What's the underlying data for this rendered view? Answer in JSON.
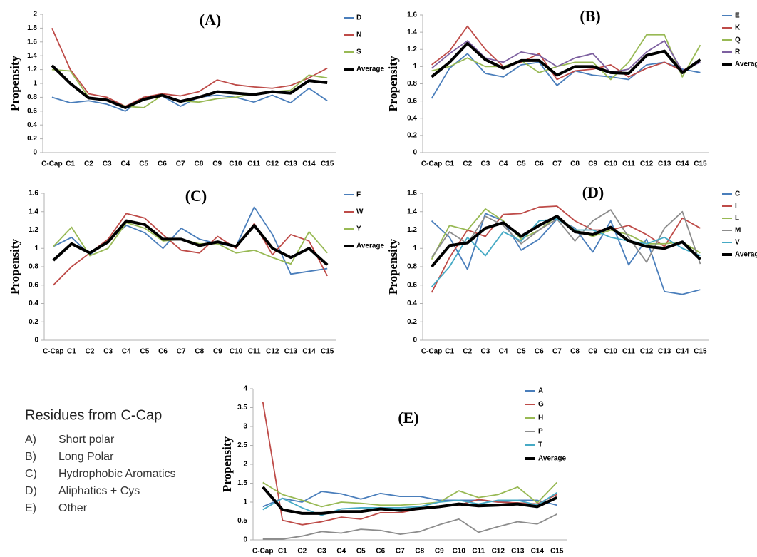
{
  "chart_data": [
    {
      "type": "line",
      "title": "(A)",
      "ylabel": "Propensity",
      "categories": [
        "C-Cap",
        "C1",
        "C2",
        "C3",
        "C4",
        "C5",
        "C6",
        "C7",
        "C8",
        "C9",
        "C10",
        "C11",
        "C12",
        "C13",
        "C14",
        "C15"
      ],
      "ylim": [
        0,
        2
      ],
      "yticks": [
        0,
        0.2,
        0.4,
        0.6,
        0.8,
        1,
        1.2,
        1.4,
        1.6,
        1.8,
        2
      ],
      "series": [
        {
          "name": "D",
          "color": "#4a7ebb",
          "values": [
            0.8,
            0.72,
            0.75,
            0.7,
            0.6,
            0.8,
            0.82,
            0.67,
            0.8,
            0.83,
            0.8,
            0.73,
            0.83,
            0.72,
            0.93,
            0.75
          ]
        },
        {
          "name": "N",
          "color": "#be4b48",
          "values": [
            1.8,
            1.2,
            0.85,
            0.8,
            0.67,
            0.8,
            0.85,
            0.82,
            0.88,
            1.05,
            0.98,
            0.95,
            0.93,
            0.97,
            1.08,
            1.22
          ]
        },
        {
          "name": "S",
          "color": "#98b954",
          "values": [
            1.2,
            1.18,
            0.8,
            0.75,
            0.67,
            0.65,
            0.83,
            0.75,
            0.73,
            0.78,
            0.8,
            0.85,
            0.88,
            0.9,
            1.12,
            1.08
          ]
        },
        {
          "name": "Average",
          "color": "#000000",
          "values": [
            1.26,
            1.0,
            0.79,
            0.76,
            0.65,
            0.77,
            0.83,
            0.74,
            0.8,
            0.88,
            0.86,
            0.84,
            0.88,
            0.86,
            1.04,
            1.01
          ]
        }
      ]
    },
    {
      "type": "line",
      "title": "(B)",
      "ylabel": "Propensity",
      "categories": [
        "C-Cap",
        "C1",
        "C2",
        "C3",
        "C4",
        "C5",
        "C6",
        "C7",
        "C8",
        "C9",
        "C10",
        "C11",
        "C12",
        "C13",
        "C14",
        "C15"
      ],
      "ylim": [
        0,
        1.6
      ],
      "yticks": [
        0,
        0.2,
        0.4,
        0.6,
        0.8,
        1,
        1.2,
        1.4,
        1.6
      ],
      "series": [
        {
          "name": "E",
          "color": "#4a7ebb",
          "values": [
            0.63,
            0.98,
            1.15,
            0.92,
            0.88,
            1.02,
            1.05,
            0.78,
            0.95,
            0.9,
            0.88,
            0.85,
            1.02,
            1.05,
            0.97,
            0.93
          ]
        },
        {
          "name": "K",
          "color": "#be4b48",
          "values": [
            1.02,
            1.18,
            1.47,
            1.2,
            1.0,
            1.05,
            1.15,
            0.85,
            0.95,
            0.97,
            1.02,
            0.88,
            0.98,
            1.05,
            0.95,
            1.07
          ]
        },
        {
          "name": "Q",
          "color": "#98b954",
          "values": [
            0.95,
            1.0,
            1.1,
            1.0,
            1.0,
            1.07,
            0.93,
            1.0,
            1.05,
            1.05,
            0.85,
            1.05,
            1.37,
            1.37,
            0.88,
            1.25
          ]
        },
        {
          "name": "R",
          "color": "#7d60a0",
          "values": [
            0.98,
            1.15,
            1.3,
            1.1,
            1.05,
            1.17,
            1.13,
            1.0,
            1.1,
            1.15,
            0.93,
            0.97,
            1.17,
            1.3,
            0.95,
            1.05
          ]
        },
        {
          "name": "Average",
          "color": "#000000",
          "values": [
            0.88,
            1.05,
            1.27,
            1.08,
            0.98,
            1.07,
            1.07,
            0.9,
            1.0,
            1.0,
            0.93,
            0.92,
            1.13,
            1.18,
            0.93,
            1.08
          ]
        }
      ]
    },
    {
      "type": "line",
      "title": "(C)",
      "ylabel": "Propensity",
      "categories": [
        "C-Cap",
        "C1",
        "C2",
        "C3",
        "C4",
        "C5",
        "C6",
        "C7",
        "C8",
        "C9",
        "C10",
        "C11",
        "C12",
        "C13",
        "C14",
        "C15"
      ],
      "ylim": [
        0,
        1.6
      ],
      "yticks": [
        0,
        0.2,
        0.4,
        0.6,
        0.8,
        1,
        1.2,
        1.4,
        1.6
      ],
      "series": [
        {
          "name": "F",
          "color": "#4a7ebb",
          "values": [
            1.02,
            1.12,
            0.93,
            1.08,
            1.25,
            1.17,
            1.0,
            1.22,
            1.1,
            1.05,
            1.02,
            1.45,
            1.15,
            0.72,
            0.75,
            0.78
          ]
        },
        {
          "name": "W",
          "color": "#be4b48",
          "values": [
            0.6,
            0.8,
            0.95,
            1.1,
            1.38,
            1.33,
            1.15,
            0.98,
            0.95,
            1.13,
            1.0,
            1.27,
            0.93,
            1.15,
            1.08,
            0.7
          ]
        },
        {
          "name": "Y",
          "color": "#98b954",
          "values": [
            1.02,
            1.23,
            0.92,
            1.0,
            1.28,
            1.22,
            1.08,
            1.1,
            1.05,
            1.05,
            0.95,
            0.98,
            0.9,
            0.83,
            1.18,
            0.95
          ]
        },
        {
          "name": "Average",
          "color": "#000000",
          "values": [
            0.87,
            1.05,
            0.95,
            1.07,
            1.3,
            1.26,
            1.1,
            1.1,
            1.03,
            1.07,
            1.02,
            1.25,
            1.0,
            0.9,
            1.0,
            0.82
          ]
        }
      ]
    },
    {
      "type": "line",
      "title": "(D)",
      "ylabel": "Propensity",
      "categories": [
        "C-Cap",
        "C1",
        "C2",
        "C3",
        "C4",
        "C5",
        "C6",
        "C7",
        "C8",
        "C9",
        "C10",
        "C11",
        "C12",
        "C13",
        "C14",
        "C15"
      ],
      "ylim": [
        0,
        1.6
      ],
      "yticks": [
        0,
        0.2,
        0.4,
        0.6,
        0.8,
        1,
        1.2,
        1.4,
        1.6
      ],
      "series": [
        {
          "name": "C",
          "color": "#4a7ebb",
          "values": [
            1.3,
            1.12,
            0.77,
            1.38,
            1.3,
            0.98,
            1.1,
            1.32,
            1.22,
            0.96,
            1.3,
            0.82,
            1.1,
            0.53,
            0.5,
            0.55
          ]
        },
        {
          "name": "I",
          "color": "#be4b48",
          "values": [
            0.52,
            0.9,
            1.2,
            1.13,
            1.37,
            1.38,
            1.45,
            1.46,
            1.3,
            1.2,
            1.2,
            1.25,
            1.15,
            1.02,
            1.33,
            1.22
          ]
        },
        {
          "name": "L",
          "color": "#98b954",
          "values": [
            0.88,
            1.25,
            1.2,
            1.43,
            1.3,
            1.1,
            1.2,
            1.35,
            1.2,
            1.13,
            1.2,
            1.15,
            1.05,
            1.05,
            1.07,
            0.95
          ]
        },
        {
          "name": "M",
          "color": "#8c8c8c",
          "values": [
            0.9,
            1.18,
            1.05,
            1.35,
            1.25,
            1.05,
            1.2,
            1.32,
            1.08,
            1.3,
            1.42,
            1.12,
            0.85,
            1.22,
            1.4,
            0.83
          ]
        },
        {
          "name": "V",
          "color": "#46aac5",
          "values": [
            0.58,
            0.8,
            1.12,
            0.92,
            1.18,
            1.08,
            1.3,
            1.32,
            1.2,
            1.2,
            1.12,
            1.08,
            1.05,
            1.12,
            1.0,
            0.92
          ]
        },
        {
          "name": "Average",
          "color": "#000000",
          "values": [
            0.8,
            1.03,
            1.06,
            1.22,
            1.28,
            1.13,
            1.25,
            1.35,
            1.18,
            1.15,
            1.23,
            1.08,
            1.02,
            1.0,
            1.07,
            0.88
          ]
        }
      ]
    },
    {
      "type": "line",
      "title": "(E)",
      "ylabel": "Propensity",
      "categories": [
        "C-Cap",
        "C1",
        "C2",
        "C3",
        "C4",
        "C5",
        "C6",
        "C7",
        "C8",
        "C9",
        "C10",
        "C11",
        "C12",
        "C13",
        "C14",
        "C15"
      ],
      "ylim": [
        0,
        4
      ],
      "yticks": [
        0,
        0.5,
        1,
        1.5,
        2,
        2.5,
        3,
        3.5,
        4
      ],
      "series": [
        {
          "name": "A",
          "color": "#4a7ebb",
          "values": [
            0.88,
            1.1,
            1.0,
            1.28,
            1.22,
            1.08,
            1.23,
            1.15,
            1.15,
            1.05,
            1.05,
            1.05,
            1.0,
            1.05,
            1.05,
            0.92
          ]
        },
        {
          "name": "G",
          "color": "#be4b48",
          "values": [
            3.65,
            0.52,
            0.4,
            0.48,
            0.6,
            0.55,
            0.72,
            0.72,
            0.82,
            0.9,
            0.92,
            1.07,
            1.0,
            0.98,
            0.95,
            1.2
          ]
        },
        {
          "name": "H",
          "color": "#98b954",
          "values": [
            1.52,
            1.2,
            1.05,
            0.88,
            1.0,
            0.97,
            0.92,
            0.92,
            0.95,
            1.0,
            1.3,
            1.12,
            1.2,
            1.4,
            0.98,
            1.52
          ]
        },
        {
          "name": "P",
          "color": "#8c8c8c",
          "values": [
            0.02,
            0.02,
            0.1,
            0.22,
            0.18,
            0.28,
            0.25,
            0.15,
            0.22,
            0.4,
            0.55,
            0.2,
            0.35,
            0.48,
            0.42,
            0.68
          ]
        },
        {
          "name": "T",
          "color": "#46aac5",
          "values": [
            0.8,
            1.1,
            0.85,
            0.65,
            0.82,
            0.85,
            0.85,
            0.85,
            0.88,
            1.0,
            1.05,
            0.95,
            1.05,
            1.05,
            0.92,
            1.25
          ]
        },
        {
          "name": "Average",
          "color": "#000000",
          "values": [
            1.4,
            0.8,
            0.7,
            0.7,
            0.75,
            0.75,
            0.82,
            0.78,
            0.83,
            0.88,
            0.95,
            0.9,
            0.92,
            0.95,
            0.88,
            1.12
          ]
        }
      ]
    }
  ],
  "key_box": {
    "title": "Residues from C-Cap",
    "items": [
      {
        "label": "A)",
        "text": "Short polar"
      },
      {
        "label": "B)",
        "text": "Long Polar"
      },
      {
        "label": "C)",
        "text": "Hydrophobic Aromatics"
      },
      {
        "label": "D)",
        "text": "Aliphatics + Cys"
      },
      {
        "label": "E)",
        "text": "Other"
      }
    ]
  }
}
